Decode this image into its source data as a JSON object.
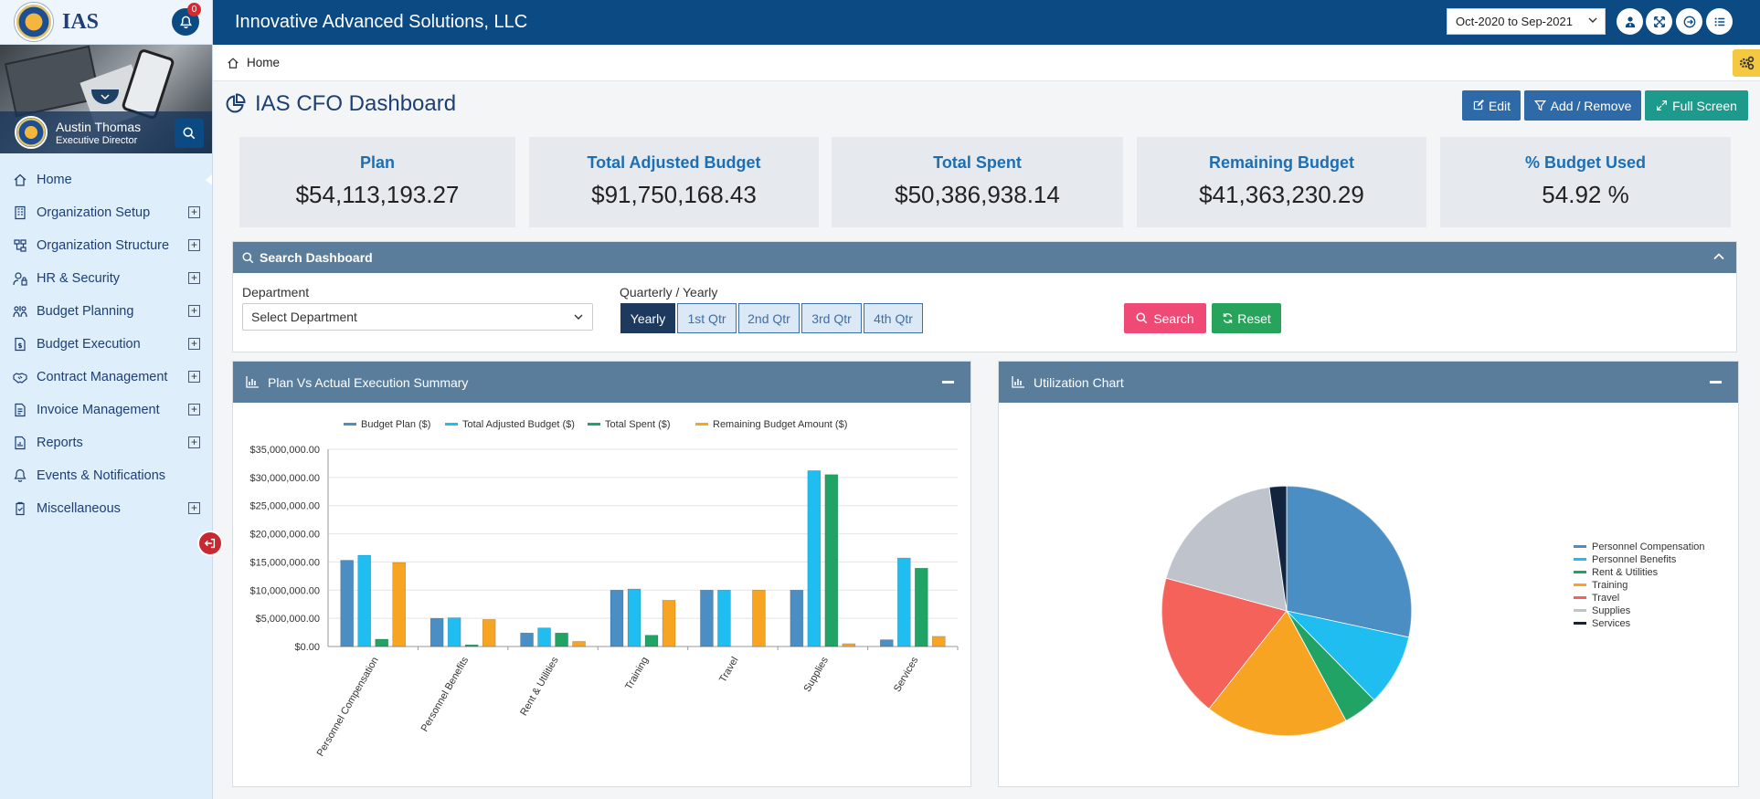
{
  "logo": {
    "text": "IAS"
  },
  "notifications": {
    "count": "0"
  },
  "user": {
    "name": "Austin Thomas",
    "role": "Executive Director"
  },
  "nav": [
    {
      "label": "Home",
      "icon": "home-icon",
      "expandable": false
    },
    {
      "label": "Organization Setup",
      "icon": "building-icon",
      "expandable": true
    },
    {
      "label": "Organization Structure",
      "icon": "org-chart-icon",
      "expandable": true
    },
    {
      "label": "HR & Security",
      "icon": "user-lock-icon",
      "expandable": true
    },
    {
      "label": "Budget Planning",
      "icon": "people-money-icon",
      "expandable": true
    },
    {
      "label": "Budget Execution",
      "icon": "invoice-dollar-icon",
      "expandable": true
    },
    {
      "label": "Contract Management",
      "icon": "handshake-icon",
      "expandable": true
    },
    {
      "label": "Invoice Management",
      "icon": "document-icon",
      "expandable": true
    },
    {
      "label": "Reports",
      "icon": "report-icon",
      "expandable": true
    },
    {
      "label": "Events & Notifications",
      "icon": "bell-icon",
      "expandable": false
    },
    {
      "label": "Miscellaneous",
      "icon": "clipboard-check-icon",
      "expandable": true
    }
  ],
  "topbar": {
    "company": "Innovative Advanced Solutions, LLC",
    "period": "Oct-2020 to Sep-2021"
  },
  "breadcrumb": {
    "home": "Home"
  },
  "page": {
    "title": "IAS CFO Dashboard"
  },
  "actions": {
    "edit": "Edit",
    "add_remove": "Add / Remove",
    "full_screen": "Full Screen"
  },
  "kpis": [
    {
      "label": "Plan",
      "value": "$54,113,193.27"
    },
    {
      "label": "Total Adjusted Budget",
      "value": "$91,750,168.43"
    },
    {
      "label": "Total Spent",
      "value": "$50,386,938.14"
    },
    {
      "label": "Remaining Budget",
      "value": "$41,363,230.29"
    },
    {
      "label": "% Budget Used",
      "value": "54.92 %"
    }
  ],
  "search": {
    "title": "Search Dashboard",
    "department_label": "Department",
    "department_value": "Select Department",
    "period_label": "Quarterly / Yearly",
    "periods": [
      "Yearly",
      "1st Qtr",
      "2nd Qtr",
      "3rd Qtr",
      "4th Qtr"
    ],
    "selected_period": "Yearly",
    "search_btn": "Search",
    "reset_btn": "Reset"
  },
  "panels": {
    "bar_title": "Plan Vs Actual Execution Summary",
    "pie_title": "Utilization Chart"
  },
  "colors": {
    "nav_blue": "#0c4a83",
    "panel_head": "#5b7d9c",
    "kpi_label": "#1c6fb3"
  },
  "chart_data": [
    {
      "type": "bar",
      "categories": [
        "Personnel Compensation",
        "Personnel Benefits",
        "Rent & Utilities",
        "Training",
        "Travel",
        "Supplies",
        "Services"
      ],
      "series": [
        {
          "name": "Budget Plan  ($)",
          "color": "#4a8ec4",
          "values": [
            15300000,
            5000000,
            2400000,
            10000000,
            10000000,
            10000000,
            1200000
          ]
        },
        {
          "name": "Total Adjusted Budget  ($)",
          "color": "#1fbdf0",
          "values": [
            16200000,
            5100000,
            3300000,
            10200000,
            10000000,
            31200000,
            15700000
          ]
        },
        {
          "name": "Total Spent  ($)",
          "color": "#21a366",
          "values": [
            1300000,
            300000,
            2400000,
            2000000,
            0,
            30500000,
            13900000
          ]
        },
        {
          "name": "Remaining Budget Amount  ($)",
          "color": "#f7a423",
          "values": [
            14900000,
            4800000,
            900000,
            8200000,
            10000000,
            500000,
            1800000
          ]
        }
      ],
      "ylim": [
        0,
        35000000
      ],
      "yticks": [
        "$0.00",
        "$5,000,000.00",
        "$10,000,000.00",
        "$15,000,000.00",
        "$20,000,000.00",
        "$25,000,000.00",
        "$30,000,000.00",
        "$35,000,000.00"
      ],
      "legend": "top",
      "grid": true
    },
    {
      "type": "pie",
      "labels": [
        "Personnel Compensation",
        "Personnel Benefits",
        "Rent & Utilities",
        "Training",
        "Travel",
        "Supplies",
        "Services"
      ],
      "values": [
        15300000,
        5000000,
        2400000,
        10000000,
        10000000,
        10000000,
        1200000
      ],
      "colors": [
        "#4a8ec4",
        "#1fbdf0",
        "#21a366",
        "#f7a423",
        "#f4625a",
        "#bfc3cc",
        "#13243f"
      ],
      "legend": "right"
    }
  ]
}
